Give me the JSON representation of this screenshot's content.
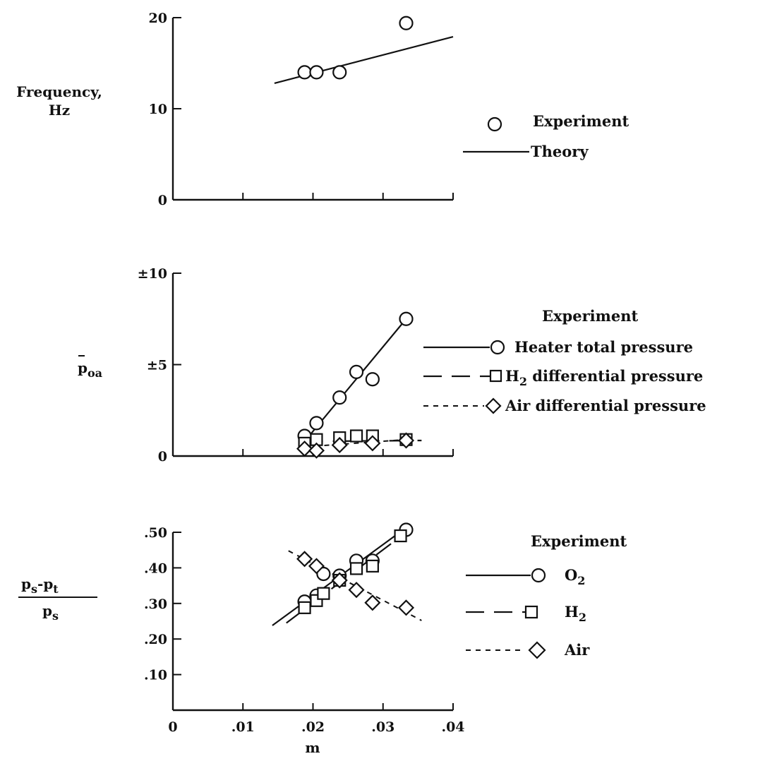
{
  "chart_data": [
    {
      "type": "scatter",
      "ylabel": "Frequency,",
      "ylabel_unit": "Hz",
      "xlim": [
        0,
        0.04
      ],
      "ylim": [
        0,
        20
      ],
      "yticks": [
        "0",
        "10",
        "20"
      ],
      "legend": {
        "experiment": "Experiment",
        "theory": "Theory"
      },
      "series": [
        {
          "name": "Experiment",
          "marker": "circle",
          "x": [
            0.0188,
            0.0205,
            0.0238,
            0.0333
          ],
          "y": [
            14.0,
            14.0,
            14.0,
            19.4
          ]
        },
        {
          "name": "Theory",
          "style": "solid",
          "x": [
            0.0145,
            0.04
          ],
          "y": [
            12.8,
            17.9
          ]
        }
      ]
    },
    {
      "type": "scatter",
      "ylabel_main": "p",
      "ylabel_sub": "oa",
      "xlim": [
        0,
        0.04
      ],
      "ylim": [
        0,
        10
      ],
      "yticks": [
        "0",
        "±5",
        "±10"
      ],
      "legend_title": "Experiment",
      "series": [
        {
          "name": "Heater total pressure",
          "marker": "circle",
          "style": "solid",
          "x": [
            0.0188,
            0.0205,
            0.0238,
            0.0262,
            0.0285,
            0.0333
          ],
          "y": [
            1.1,
            1.8,
            3.2,
            4.6,
            4.2,
            7.5
          ],
          "fit_x": [
            0.0188,
            0.0333
          ],
          "fit_y": [
            0.8,
            7.5
          ]
        },
        {
          "name_main": "H",
          "name_sub": "2",
          "name_rest": " differential pressure",
          "marker": "square",
          "style": "longdash",
          "x": [
            0.0188,
            0.0205,
            0.0238,
            0.0262,
            0.0285,
            0.0333
          ],
          "y": [
            0.7,
            0.9,
            1.0,
            1.1,
            1.1,
            0.9
          ],
          "fit_x": [
            0.0188,
            0.0355
          ],
          "fit_y": [
            0.8,
            0.85
          ]
        },
        {
          "name": "Air differential pressure",
          "marker": "diamond",
          "style": "shortdash",
          "x": [
            0.0188,
            0.0205,
            0.0238,
            0.0285,
            0.0333
          ],
          "y": [
            0.4,
            0.3,
            0.6,
            0.7,
            0.85
          ],
          "fit_x": [
            0.0188,
            0.0333
          ],
          "fit_y": [
            0.5,
            0.9
          ]
        }
      ]
    },
    {
      "type": "scatter",
      "ylabel_num_a": "p",
      "ylabel_num_a_sub": "s",
      "ylabel_num_b": "p",
      "ylabel_num_b_sub": "t",
      "ylabel_den": "p",
      "ylabel_den_sub": "s",
      "xlabel": "m",
      "xlim": [
        0,
        0.04
      ],
      "ylim": [
        0,
        0.5
      ],
      "xticks": [
        "0",
        ".01",
        ".02",
        ".03",
        ".04"
      ],
      "yticks": [
        ".10",
        ".20",
        ".30",
        ".40",
        ".50"
      ],
      "legend_title": "Experiment",
      "series": [
        {
          "name_main": "O",
          "name_sub": "2",
          "marker": "circle",
          "style": "solid",
          "x": [
            0.0188,
            0.0205,
            0.0215,
            0.0238,
            0.0262,
            0.0285,
            0.0333
          ],
          "y": [
            0.305,
            0.322,
            0.383,
            0.378,
            0.42,
            0.42,
            0.507
          ],
          "fit_x": [
            0.0142,
            0.0333
          ],
          "fit_y": [
            0.238,
            0.513
          ]
        },
        {
          "name_main": "H",
          "name_sub": "2",
          "marker": "square",
          "style": "longdash",
          "x": [
            0.0188,
            0.0205,
            0.0215,
            0.0238,
            0.0262,
            0.0285,
            0.0325
          ],
          "y": [
            0.288,
            0.308,
            0.328,
            0.365,
            0.398,
            0.405,
            0.49
          ],
          "fit_x": [
            0.0162,
            0.0333
          ],
          "fit_y": [
            0.245,
            0.5
          ]
        },
        {
          "name": "Air",
          "marker": "diamond",
          "style": "shortdash",
          "x": [
            0.0188,
            0.0205,
            0.0238,
            0.0262,
            0.0285,
            0.0333
          ],
          "y": [
            0.425,
            0.405,
            0.365,
            0.338,
            0.302,
            0.288
          ],
          "fit_x": [
            0.0165,
            0.0355
          ],
          "fit_y": [
            0.448,
            0.252
          ]
        }
      ]
    }
  ]
}
